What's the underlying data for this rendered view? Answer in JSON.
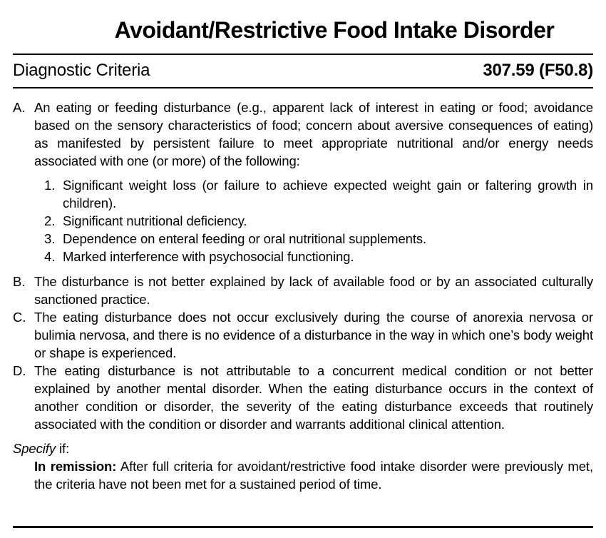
{
  "colors": {
    "background": "#ffffff",
    "ink": "#000000"
  },
  "title": "Avoidant/Restrictive Food Intake Disorder",
  "header": {
    "label": "Diagnostic Criteria",
    "code": "307.59 (F50.8)"
  },
  "criteria": [
    {
      "letter": "A.",
      "text": "An eating or feeding disturbance (e.g., apparent lack of interest in eating or food; avoidance based on the sensory characteristics of food; concern about aversive consequences of eating) as manifested by persistent failure to meet appropriate nutritional and/or energy needs associated with one (or more) of the following:",
      "sub_items": [
        {
          "number": "1.",
          "text": "Significant weight loss (or failure to achieve expected weight gain or faltering growth in children)."
        },
        {
          "number": "2.",
          "text": "Significant nutritional deficiency."
        },
        {
          "number": "3.",
          "text": "Dependence on enteral feeding or oral nutritional supplements."
        },
        {
          "number": "4.",
          "text": "Marked interference with psychosocial functioning."
        }
      ]
    },
    {
      "letter": "B.",
      "text": "The disturbance is not better explained by lack of available food or by an associated culturally sanctioned practice."
    },
    {
      "letter": "C.",
      "text": "The eating disturbance does not occur exclusively during the course of anorexia nervosa or bulimia nervosa, and there is no evidence of a disturbance in the way in which one’s body weight or shape is experienced."
    },
    {
      "letter": "D.",
      "text": "The eating disturbance is not attributable to a concurrent medical condition or not better explained by another mental disorder. When the eating disturbance occurs in the context of another condition or disorder, the severity of the eating disturbance exceeds that routinely associated with the condition or disorder and warrants additional clinical attention."
    }
  ],
  "specifier": {
    "lead_italic": "Specify",
    "lead_rest": "if:",
    "items": [
      {
        "label": "In remission:",
        "text": "After full criteria for avoidant/restrictive food intake disorder were previously met, the criteria have not been met for a sustained period of time."
      }
    ]
  }
}
